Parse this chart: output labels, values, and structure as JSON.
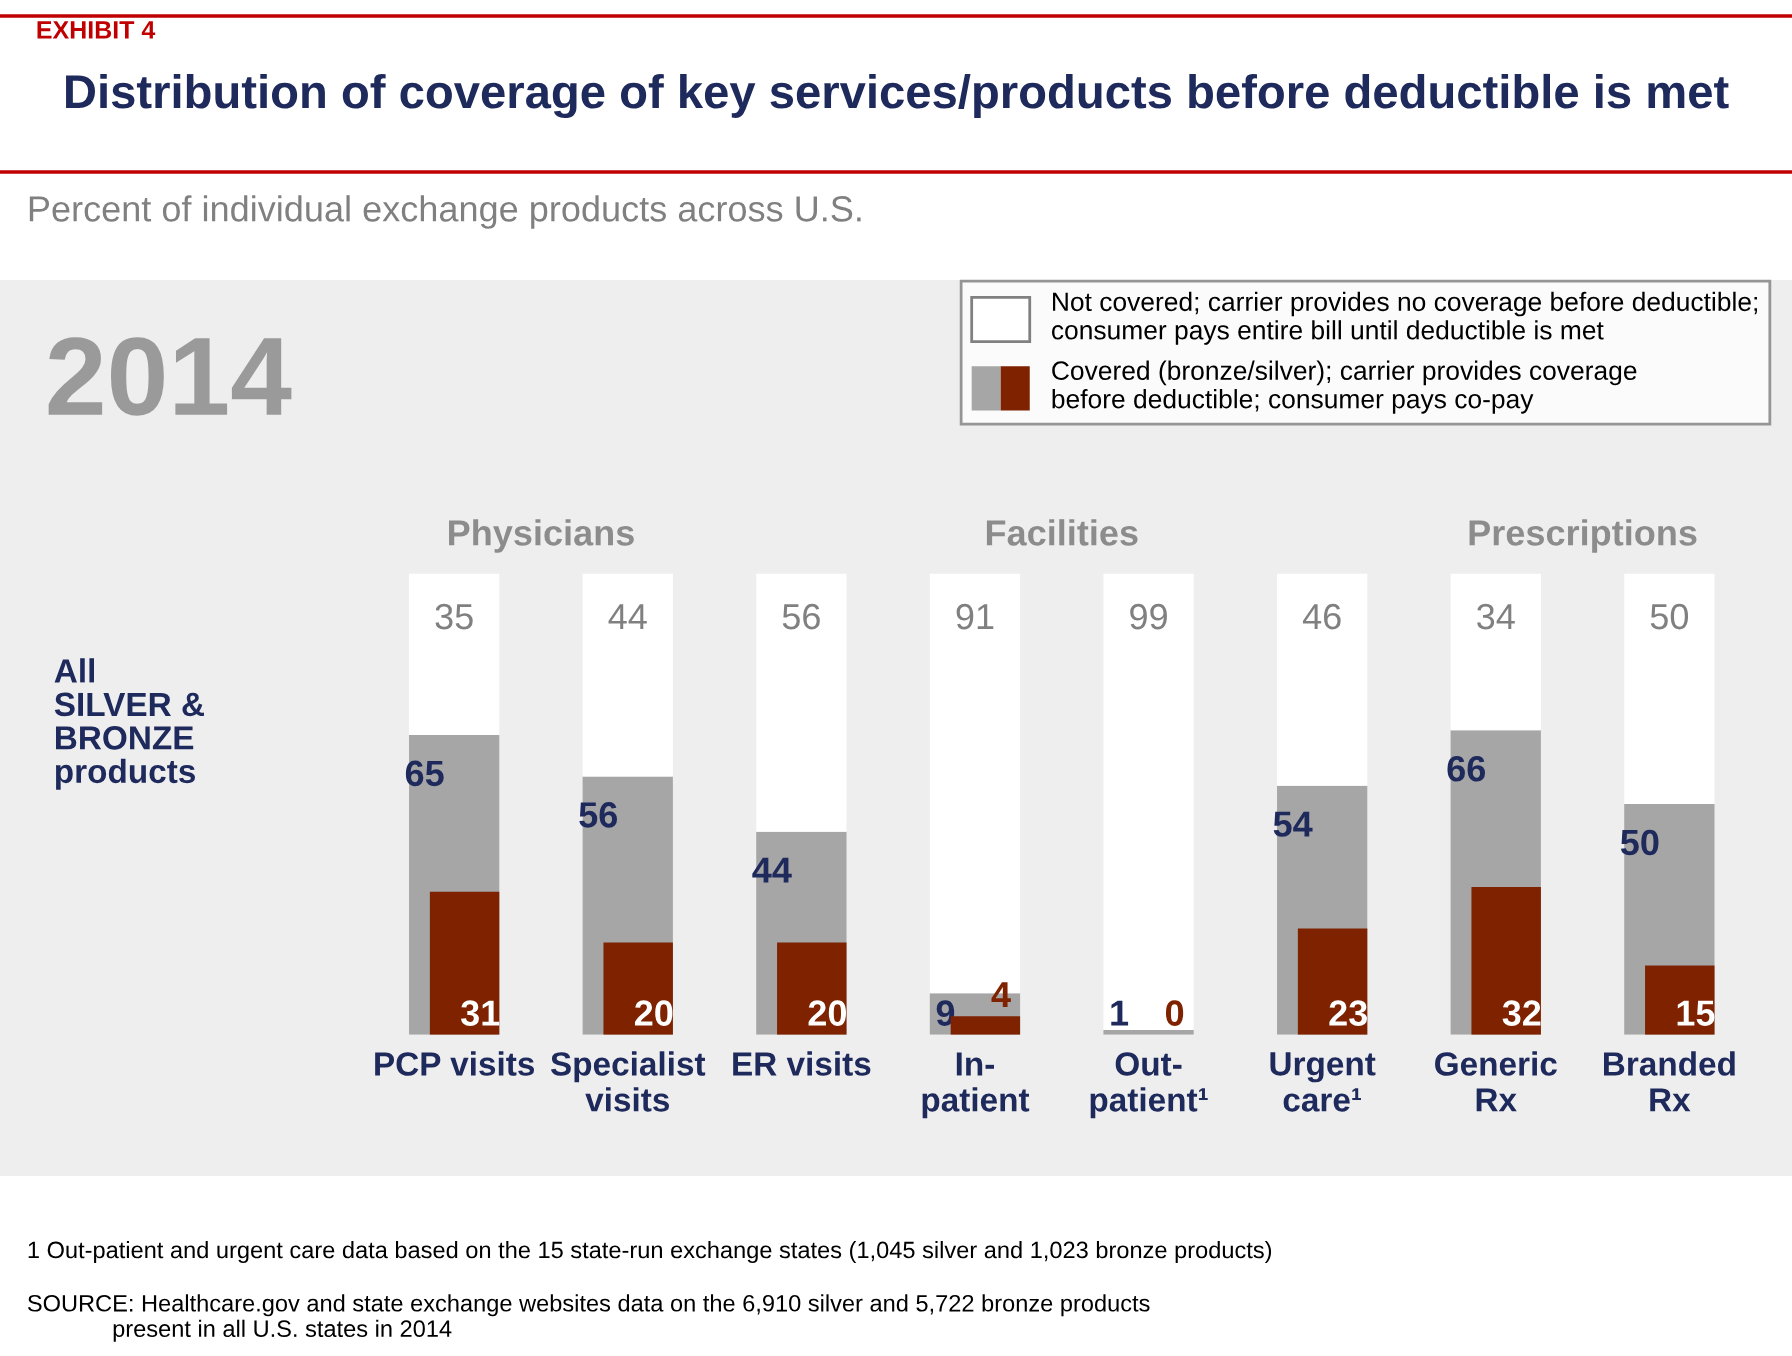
{
  "chart_data": {
    "type": "bar",
    "title": "Distribution of coverage of key services/products before deductible is met",
    "subtitle": "Percent of individual exchange products across U.S.",
    "categories": [
      "PCP visits",
      "Specialist\nvisits",
      "ER visits",
      "In-\npatient",
      "Out-\npatient¹",
      "Urgent\ncare¹",
      "Generic\nRx",
      "Branded\nRx"
    ],
    "stacked": true,
    "series": [
      {
        "name": "Covered (bronze/silver); carrier provides coverage\nbefore deductible; consumer pays co-pay",
        "color": "#a6a6a6",
        "values": [
          65,
          56,
          44,
          9,
          1,
          54,
          66,
          50
        ]
      },
      {
        "name": "Not covered; carrier provides no coverage before deductible;\nconsumer pays entire bill until deductible is met",
        "color": "#ffffff",
        "values": [
          35,
          44,
          56,
          91,
          99,
          46,
          34,
          50
        ]
      },
      {
        "color": "#7f2200",
        "axis": "y2",
        "values": [
          31,
          20,
          20,
          4,
          0,
          23,
          32,
          15
        ]
      }
    ],
    "ylim": [
      0,
      100
    ],
    "y2lim": [
      0,
      100
    ],
    "tick_labels": "x",
    "data_labels": true,
    "legend": "top right",
    "annotations": [
      "EXHIBIT 4",
      "2014",
      "Physicians",
      "Facilities",
      "Prescriptions",
      "All\nSILVER &\nBRONZE\nproducts",
      "1 Out-patient and urgent care data based on the 15 state-run exchange states (1,045 silver and 1,023 bronze products)",
      "SOURCE: Healthcare.gov and state exchange websites data on the 6,910 silver and 5,722 bronze products\n             present in all U.S. states in 2014"
    ]
  }
}
